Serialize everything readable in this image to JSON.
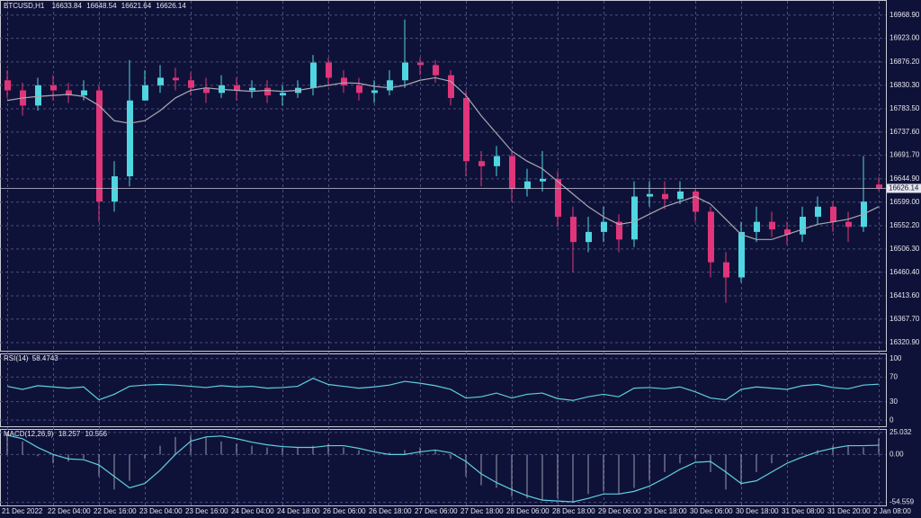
{
  "chart_data": [
    {
      "type": "candlestick",
      "symbol": "BTCUSD,H1",
      "categories": [
        "21 Dec 2022",
        null,
        null,
        "22 Dec 04:00",
        null,
        null,
        "22 Dec 16:00",
        null,
        null,
        "23 Dec 04:00",
        null,
        null,
        "23 Dec 16:00",
        null,
        null,
        "24 Dec 04:00",
        null,
        null,
        "24 Dec 18:00",
        null,
        null,
        "26 Dec 06:00",
        null,
        null,
        "26 Dec 18:00",
        null,
        null,
        "27 Dec 06:00",
        null,
        null,
        "27 Dec 18:00",
        null,
        null,
        "28 Dec 06:00",
        null,
        null,
        "28 Dec 18:00",
        null,
        null,
        "29 Dec 06:00",
        null,
        null,
        "29 Dec 18:00",
        null,
        null,
        "30 Dec 06:00",
        null,
        null,
        "30 Dec 18:00",
        null,
        null,
        "31 Dec 08:00",
        null,
        null,
        "31 Dec 20:00",
        null,
        null,
        "2 Jan 08:00"
      ],
      "open": [
        16840,
        16820,
        16790,
        16830,
        16820,
        16810,
        16820,
        16600,
        16650,
        16800,
        16830,
        16845,
        16840,
        16825,
        16815,
        16830,
        16820,
        16825,
        16810,
        16815,
        16825,
        16875,
        16845,
        16830,
        16815,
        16820,
        16840,
        16875,
        16870,
        16850,
        16805,
        16680,
        16670,
        16690,
        16625,
        16640,
        16645,
        16570,
        16520,
        16540,
        16560,
        16525,
        16610,
        16615,
        16605,
        16620,
        16580,
        16480,
        16450,
        16540,
        16560,
        16545,
        16535,
        16570,
        16590,
        16560,
        16550,
        16633.84
      ],
      "high": [
        16860,
        16835,
        16845,
        16850,
        16835,
        16840,
        16830,
        16680,
        16880,
        16860,
        16870,
        16865,
        16855,
        16845,
        16850,
        16845,
        16840,
        16840,
        16830,
        16840,
        16890,
        16885,
        16860,
        16845,
        16840,
        16860,
        16960,
        16885,
        16880,
        16860,
        16820,
        16700,
        16710,
        16700,
        16665,
        16700,
        16660,
        16590,
        16570,
        16590,
        16575,
        16640,
        16640,
        16640,
        16640,
        16625,
        16590,
        16500,
        16560,
        16590,
        16580,
        16560,
        16590,
        16610,
        16600,
        16580,
        16690,
        16648.54
      ],
      "low": [
        16805,
        16770,
        16780,
        16800,
        16795,
        16800,
        16560,
        16580,
        16630,
        16800,
        16815,
        16820,
        16810,
        16795,
        16805,
        16800,
        16805,
        16795,
        16790,
        16805,
        16810,
        16830,
        16815,
        16800,
        16795,
        16810,
        16825,
        16850,
        16835,
        16790,
        16650,
        16630,
        16650,
        16600,
        16610,
        16620,
        16550,
        16460,
        16500,
        16520,
        16500,
        16510,
        16590,
        16585,
        16595,
        16560,
        16450,
        16400,
        16440,
        16520,
        16530,
        16515,
        16520,
        16555,
        16540,
        16520,
        16540,
        16621.64
      ],
      "close": [
        16820,
        16790,
        16830,
        16820,
        16810,
        16820,
        16600,
        16650,
        16800,
        16830,
        16845,
        16840,
        16825,
        16815,
        16830,
        16820,
        16825,
        16810,
        16815,
        16825,
        16875,
        16845,
        16830,
        16815,
        16820,
        16840,
        16875,
        16870,
        16850,
        16805,
        16680,
        16670,
        16690,
        16625,
        16640,
        16645,
        16570,
        16520,
        16540,
        16560,
        16525,
        16610,
        16615,
        16605,
        16620,
        16580,
        16480,
        16450,
        16540,
        16560,
        16545,
        16535,
        16570,
        16590,
        16560,
        16550,
        16600,
        16626.14
      ],
      "ma": {
        "color": "#a8a8b4",
        "values": [
          16800,
          16805,
          16808,
          16810,
          16812,
          16808,
          16790,
          16760,
          16755,
          16760,
          16780,
          16805,
          16820,
          16825,
          16822,
          16820,
          16818,
          16820,
          16818,
          16820,
          16825,
          16830,
          16835,
          16834,
          16828,
          16825,
          16830,
          16840,
          16845,
          16838,
          16810,
          16770,
          16735,
          16700,
          16680,
          16665,
          16640,
          16615,
          16590,
          16570,
          16555,
          16560,
          16575,
          16590,
          16600,
          16610,
          16595,
          16565,
          16535,
          16525,
          16525,
          16535,
          16545,
          16555,
          16560,
          16565,
          16575,
          16590
        ]
      },
      "up_color": "#4fd6e0",
      "down_color": "#e0357a",
      "ylim": [
        16305,
        16997
      ],
      "yticks": [
        {
          "value": 16968.9,
          "label": "16968.90"
        },
        {
          "value": 16923,
          "label": "16923.00"
        },
        {
          "value": 16876.2,
          "label": "16876.20"
        },
        {
          "value": 16830.3,
          "label": "16830.30"
        },
        {
          "value": 16783.5,
          "label": "16783.50"
        },
        {
          "value": 16737.6,
          "label": "16737.60"
        },
        {
          "value": 16691.7,
          "label": "16691.70"
        },
        {
          "value": 16644.9,
          "label": "16644.90"
        },
        {
          "value": 16599,
          "label": "16599.00"
        },
        {
          "value": 16552.2,
          "label": "16552.20"
        },
        {
          "value": 16506.3,
          "label": "16506.30"
        },
        {
          "value": 16460.4,
          "label": "16460.40"
        },
        {
          "value": 16413.6,
          "label": "16413.60"
        },
        {
          "value": 16367.7,
          "label": "16367.70"
        },
        {
          "value": 16320.9,
          "label": "16320.90"
        }
      ],
      "grid": true
    },
    {
      "type": "line",
      "title": "RSI(14)",
      "color": "#5ecfe0",
      "values": [
        55,
        50,
        56,
        54,
        52,
        54,
        33,
        42,
        55,
        57,
        58,
        57,
        55,
        53,
        56,
        54,
        55,
        52,
        53,
        55,
        68,
        58,
        55,
        52,
        54,
        57,
        63,
        60,
        56,
        50,
        36,
        38,
        44,
        36,
        42,
        44,
        35,
        32,
        38,
        42,
        38,
        52,
        53,
        51,
        54,
        46,
        36,
        33,
        50,
        54,
        52,
        50,
        56,
        58,
        53,
        51,
        57,
        58.4743
      ],
      "ylim": [
        -10,
        107
      ],
      "yticks": [
        0,
        30,
        70,
        100
      ]
    },
    {
      "type": "macd",
      "title": "MACD(12,26,9)",
      "histogram": {
        "color": "#9a9cae",
        "values": [
          25,
          15,
          -2,
          -10,
          -8,
          -5,
          -25,
          -40,
          -30,
          -5,
          10,
          20,
          22,
          20,
          15,
          12,
          10,
          8,
          8,
          8,
          10,
          12,
          8,
          5,
          0,
          2,
          5,
          8,
          5,
          -5,
          -25,
          -35,
          -38,
          -48,
          -50,
          -52,
          -50,
          -55,
          -45,
          -42,
          -45,
          -38,
          -30,
          -20,
          -10,
          -5,
          -20,
          -40,
          -35,
          -20,
          -10,
          -3,
          2,
          5,
          10,
          10,
          8,
          18.257
        ]
      },
      "signal": {
        "color": "#5ecfe0",
        "values": [
          22,
          18,
          8,
          0,
          -5,
          -6,
          -12,
          -25,
          -38,
          -33,
          -18,
          0,
          15,
          20,
          21,
          18,
          14,
          11,
          9,
          8,
          8,
          10,
          10,
          7,
          3,
          0,
          0,
          3,
          5,
          2,
          -8,
          -22,
          -32,
          -40,
          -47,
          -52,
          -53,
          -54,
          -50,
          -45,
          -45,
          -42,
          -36,
          -27,
          -17,
          -9,
          -8,
          -20,
          -33,
          -30,
          -20,
          -10,
          -3,
          3,
          7,
          10,
          10,
          10.556
        ]
      },
      "ylim": [
        -58,
        28
      ],
      "yticks": [
        25.032,
        {
          "value": 0,
          "label": "0.00"
        },
        -54.559
      ]
    }
  ]
}
